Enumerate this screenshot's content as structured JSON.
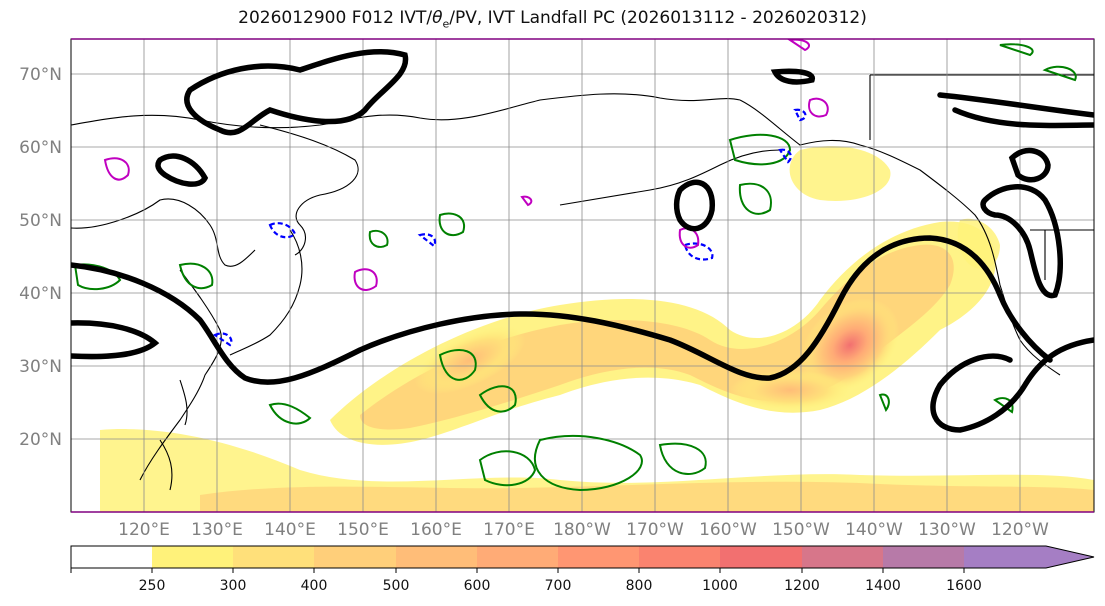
{
  "title": {
    "prefix": "2026012900 F012 IVT/",
    "theta": "θ",
    "sub": "e",
    "suffix": "/PV, IVT Landfall PC (2026013112 - 2026020312)"
  },
  "map": {
    "lat_labels": [
      "70°N",
      "60°N",
      "50°N",
      "40°N",
      "30°N",
      "20°N"
    ],
    "lon_labels": [
      "120°E",
      "130°E",
      "140°E",
      "150°E",
      "160°E",
      "170°E",
      "180°W",
      "170°W",
      "160°W",
      "150°W",
      "140°W",
      "130°W",
      "120°W"
    ],
    "lat_range": [
      10,
      75
    ],
    "lon_range": [
      110,
      251
    ]
  },
  "colorbar": {
    "ticks": [
      "250",
      "300",
      "400",
      "500",
      "600",
      "700",
      "800",
      "1000",
      "1200",
      "1400",
      "1600"
    ],
    "colors": [
      "#ffffff",
      "#fff27a",
      "#ffe07a",
      "#ffcf7a",
      "#ffbd78",
      "#ffab76",
      "#ff9672",
      "#fa836f",
      "#f27070",
      "#d7768a",
      "#b77aa8",
      "#a57ec4"
    ]
  },
  "colors": {
    "ivt_contour": "#000000",
    "theta_e": "#008000",
    "pv_neg": "#0000ff",
    "pv_pos": "#c000c0"
  }
}
